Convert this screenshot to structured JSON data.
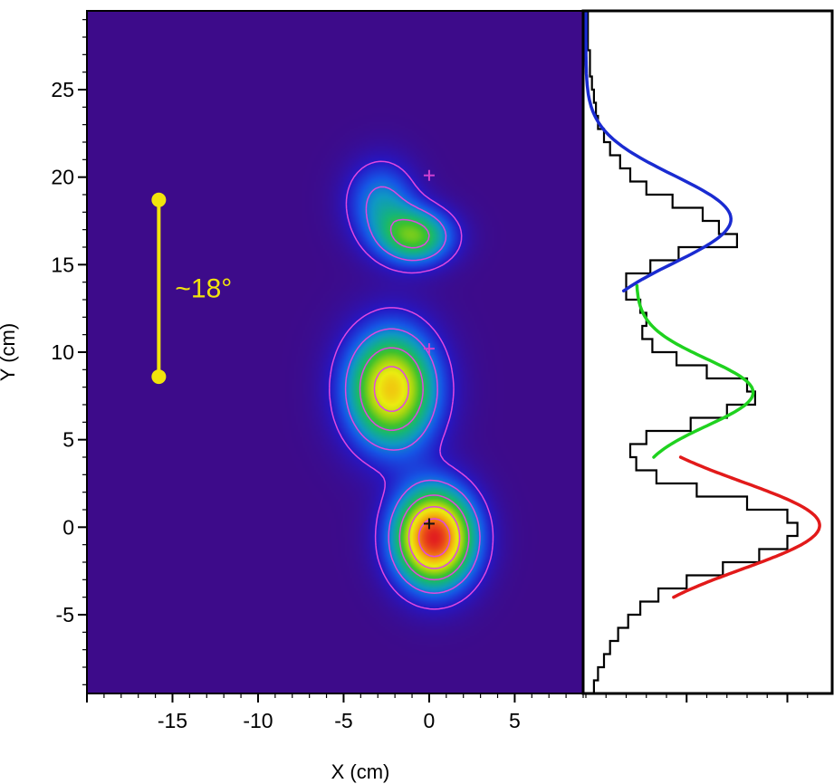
{
  "chart_data": [
    {
      "type": "heatmap",
      "title": "",
      "xlabel": "X (cm)",
      "ylabel": "Y (cm)",
      "xlim": [
        -20,
        9
      ],
      "ylim": [
        -9.5,
        29.5
      ],
      "x_ticks": [
        -15,
        -10,
        -5,
        0,
        5
      ],
      "y_ticks": [
        -5,
        0,
        5,
        10,
        15,
        20,
        25
      ],
      "x_tick_labels": [
        "-15",
        "-10",
        "-5",
        "0",
        "5"
      ],
      "y_tick_labels": [
        "-5",
        "0",
        "5",
        "10",
        "15",
        "20",
        "25"
      ],
      "grid": false,
      "colormap": [
        "#3d0b8a",
        "#2617c4",
        "#1656e6",
        "#0f98c4",
        "#15b57a",
        "#3fc22c",
        "#a6d611",
        "#ecec10",
        "#f3b30f",
        "#ee6316",
        "#e21f1f"
      ],
      "contour_color": "#e048e0",
      "blobs": [
        {
          "x": 0.3,
          "y": -0.6,
          "peak": 1.0,
          "sx": 1.6,
          "sy": 1.9
        },
        {
          "x": -2.2,
          "y": 7.9,
          "peak": 0.76,
          "sx": 1.8,
          "sy": 2.3
        },
        {
          "x": -0.8,
          "y": 16.6,
          "peak": 0.5,
          "sx": 1.5,
          "sy": 1.1
        },
        {
          "x": -2.8,
          "y": 18.6,
          "peak": 0.28,
          "sx": 1.4,
          "sy": 1.6
        }
      ],
      "contour_levels": [
        0.1,
        0.25,
        0.45,
        0.65,
        0.85
      ],
      "markers": [
        {
          "x": 0,
          "y": 0.2,
          "symbol": "+",
          "color": "#111111"
        },
        {
          "x": 0,
          "y": 10.2,
          "symbol": "+",
          "color": "#d040d0"
        },
        {
          "x": 0,
          "y": 20.1,
          "symbol": "+",
          "color": "#d040d0"
        }
      ],
      "scale_bar": {
        "x": -15.8,
        "y_from": 8.6,
        "y_to": 18.7,
        "label": "~18°",
        "color": "#f2e40c"
      }
    },
    {
      "type": "histogram",
      "orientation": "horizontal",
      "title": "",
      "ylim": [
        -9.5,
        29.5
      ],
      "xlim": [
        0,
        1.2
      ],
      "bin_width": 0.75,
      "bins_y_start": [
        -9.5,
        -8.75,
        -8.0,
        -7.25,
        -6.5,
        -5.75,
        -5.0,
        -4.25,
        -3.5,
        -2.75,
        -2.0,
        -1.25,
        -0.5,
        0.25,
        1.0,
        1.75,
        2.5,
        3.25,
        4.0,
        4.75,
        5.5,
        6.25,
        7.0,
        7.75,
        8.5,
        9.25,
        10.0,
        10.75,
        11.5,
        12.25,
        13.0,
        13.75,
        14.5,
        15.25,
        16.0,
        16.75,
        17.5,
        18.25,
        19.0,
        19.75,
        20.5,
        21.25,
        22.0,
        22.75,
        23.5,
        24.25,
        25.0,
        25.75,
        26.5,
        27.25,
        28.0,
        28.75
      ],
      "counts": [
        0.04,
        0.06,
        0.09,
        0.12,
        0.16,
        0.21,
        0.27,
        0.36,
        0.5,
        0.68,
        0.86,
        1.0,
        1.05,
        1.0,
        0.8,
        0.55,
        0.35,
        0.25,
        0.22,
        0.3,
        0.52,
        0.7,
        0.84,
        0.8,
        0.6,
        0.45,
        0.33,
        0.28,
        0.3,
        0.27,
        0.2,
        0.2,
        0.32,
        0.46,
        0.75,
        0.66,
        0.58,
        0.43,
        0.3,
        0.22,
        0.17,
        0.12,
        0.09,
        0.06,
        0.05,
        0.04,
        0.03,
        0.02,
        0.02,
        0.01,
        0.01,
        0.01
      ],
      "series": [
        {
          "color": "#e21a1a",
          "amp": 0.98,
          "mu": 0.1,
          "sigma": 2.5,
          "base": 0.18,
          "y_range": [
            -4,
            4
          ]
        },
        {
          "color": "#1fd21f",
          "amp": 0.58,
          "mu": 7.7,
          "sigma": 1.9,
          "base": 0.25,
          "y_range": [
            4,
            13.8
          ]
        },
        {
          "color": "#1a2bd1",
          "amp": 0.72,
          "mu": 17.6,
          "sigma": 2.5,
          "base": 0.0,
          "y_range": [
            13.5,
            29.5
          ]
        }
      ]
    }
  ]
}
